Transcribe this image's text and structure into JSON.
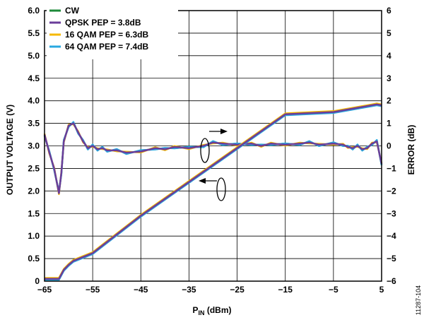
{
  "chart_data": {
    "type": "line",
    "xlabel_main": "P",
    "xlabel_sub": "IN",
    "xlabel_unit": " (dBm)",
    "ylabel": "OUTPUT VOLTAGE (V)",
    "y2label": "ERROR (dB)",
    "xlim": [
      -65,
      5
    ],
    "ylim": [
      0,
      6
    ],
    "y2lim": [
      -6,
      6
    ],
    "xticks": [
      "−65",
      "−55",
      "−45",
      "−35",
      "−25",
      "−15",
      "−5",
      "5"
    ],
    "xtick_values": [
      -65,
      -55,
      -45,
      -35,
      -25,
      -15,
      -5,
      5
    ],
    "yticks": [
      "0",
      "0.5",
      "1.0",
      "1.5",
      "2.0",
      "2.5",
      "3.0",
      "3.5",
      "4.0",
      "4.5",
      "5.0",
      "5.5",
      "6.0"
    ],
    "ytick_values": [
      0,
      0.5,
      1,
      1.5,
      2,
      2.5,
      3,
      3.5,
      4,
      4.5,
      5,
      5.5,
      6
    ],
    "y2ticks": [
      "−6",
      "−5",
      "−4",
      "−3",
      "−2",
      "−1",
      "0",
      "1",
      "2",
      "3",
      "4",
      "5",
      "6"
    ],
    "y2tick_values": [
      -6,
      -5,
      -4,
      -3,
      -2,
      -1,
      0,
      1,
      2,
      3,
      4,
      5,
      6
    ],
    "grid": true,
    "legend_position": "top-left",
    "series": [
      {
        "name": "CW",
        "color": "#1e8a3a"
      },
      {
        "name": "QPSK PEP = 3.8dB",
        "color": "#6a3d9a"
      },
      {
        "name": "16 QAM PEP = 6.3dB",
        "color": "#f5b800"
      },
      {
        "name": "64 QAM PEP = 7.4dB",
        "color": "#29a8e0"
      }
    ],
    "output_voltage": {
      "x": [
        -65,
        -62,
        -61,
        -60,
        -59,
        -55,
        -45,
        -35,
        -25,
        -15,
        -5,
        3,
        4,
        5
      ],
      "y": [
        0.05,
        0.05,
        0.25,
        0.36,
        0.45,
        0.62,
        1.45,
        2.2,
        2.95,
        3.7,
        3.75,
        3.9,
        3.92,
        3.9
      ]
    },
    "error_db": {
      "x": [
        -65,
        -64,
        -63,
        -62,
        -61.5,
        -61,
        -60,
        -59,
        -58,
        -57,
        -56,
        -55,
        -54,
        -53,
        -52,
        -50,
        -48,
        -45,
        -42,
        -40,
        -38,
        -35,
        -32,
        -30,
        -28,
        -25,
        -22,
        -20,
        -18,
        -15,
        -12,
        -10,
        -8,
        -5,
        -3,
        -2,
        -1,
        0,
        1,
        2,
        3,
        4,
        5
      ],
      "y": [
        0.5,
        -0.3,
        -1.0,
        -2.1,
        -1.2,
        0.2,
        0.9,
        1.0,
        0.6,
        0.2,
        -0.1,
        0.0,
        -0.15,
        -0.1,
        -0.2,
        -0.2,
        -0.3,
        -0.25,
        -0.1,
        -0.15,
        -0.05,
        -0.1,
        0.0,
        0.15,
        0.1,
        0.05,
        0.1,
        0.0,
        0.1,
        0.05,
        0.1,
        0.15,
        0.05,
        0.1,
        0.05,
        -0.05,
        -0.1,
        0.0,
        -0.15,
        -0.1,
        0.1,
        0.2,
        -0.8
      ]
    },
    "annotations": {
      "figure_id": "11287-104"
    }
  }
}
